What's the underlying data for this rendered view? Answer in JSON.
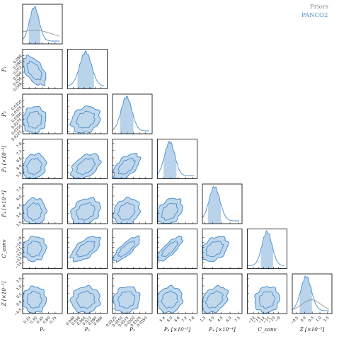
{
  "chart_data": {
    "type": "corner",
    "legend": {
      "placement": "top-right",
      "entries": [
        {
          "name": "Priors",
          "color": "#8c8c8c"
        },
        {
          "name": "PANCO2",
          "color": "#4a8fcb"
        }
      ]
    },
    "colors": {
      "posterior_line": "#4a8fcb",
      "posterior_fill": "#b9d3ea",
      "prior_line": "#8c8c8c"
    },
    "parameters": [
      {
        "label": "P₀",
        "range": [
          0.0,
          0.85
        ],
        "ticks": [
          "0.15",
          "0.30",
          "0.45",
          "0.60",
          "0.75"
        ],
        "tick_values": [
          0.15,
          0.3,
          0.45,
          0.6,
          0.75
        ],
        "mean": 0.27,
        "sd": 0.11,
        "shaded": [
          0.13,
          0.42
        ]
      },
      {
        "label": "P₁",
        "range": [
          0.04,
          0.093
        ],
        "ticks": [
          "0.048",
          "0.056",
          "0.064",
          "0.072",
          "0.080",
          "0.088"
        ],
        "tick_values": [
          0.048,
          0.056,
          0.064,
          0.072,
          0.08,
          0.088
        ],
        "mean": 0.066,
        "sd": 0.0085,
        "shaded": [
          0.054,
          0.078
        ]
      },
      {
        "label": "P₂",
        "range": [
          0.0215,
          0.0365
        ],
        "ticks": [
          "0.0225",
          "0.0250",
          "0.0275",
          "0.0300",
          "0.0325",
          "0.0350"
        ],
        "tick_values": [
          0.0225,
          0.025,
          0.0275,
          0.03,
          0.0325,
          0.035
        ],
        "mean": 0.0272,
        "sd": 0.0022,
        "shaded": [
          0.0244,
          0.03
        ]
      },
      {
        "label": "P₃ [×10⁻³]",
        "range": [
          4.9,
          7.9
        ],
        "ticks": [
          "5.4",
          "6.0",
          "6.6",
          "7.2",
          "7.8"
        ],
        "tick_values": [
          5.4,
          6.0,
          6.6,
          7.2,
          7.8
        ],
        "mean": 5.9,
        "sd": 0.42,
        "shaded": [
          5.4,
          6.45
        ]
      },
      {
        "label": "P₄ [×10⁻⁴]",
        "range": [
          1.2,
          7.6
        ],
        "ticks": [
          "1.5",
          "3.0",
          "4.5",
          "6.0",
          "7.5"
        ],
        "tick_values": [
          1.5,
          3.0,
          4.5,
          6.0,
          7.5
        ],
        "mean": 3.3,
        "sd": 0.95,
        "shaded": [
          2.1,
          4.5
        ]
      },
      {
        "label": "C_conv",
        "range": [
          -15.2,
          -7.9
        ],
        "ticks": [
          "−14",
          "−13",
          "−12",
          "−11",
          "−10",
          "−9"
        ],
        "tick_values": [
          -14,
          -13,
          -12,
          -11,
          -10,
          -9
        ],
        "mean": -11.3,
        "sd": 1.0,
        "shaded": [
          -12.6,
          -10.0
        ]
      },
      {
        "label": "Z [×10⁻⁵]",
        "range": [
          -0.8,
          1.6
        ],
        "ticks": [
          "−0.5",
          "0.0",
          "0.5",
          "1.0",
          "1.5"
        ],
        "tick_values": [
          -0.5,
          0.0,
          0.5,
          1.0,
          1.5
        ],
        "mean": 0.1,
        "sd": 0.35,
        "shaded": [
          -0.33,
          0.52
        ]
      }
    ],
    "priors": [
      {
        "index": 0,
        "mean": 0.27,
        "sd": 0.45
      },
      {
        "index": 6,
        "mean": 0.45,
        "sd": 0.6
      }
    ],
    "correlations": [
      [
        1,
        -0.55,
        0.05,
        0.15,
        0.05,
        0.1,
        0.0
      ],
      [
        -0.55,
        1,
        0.2,
        0.45,
        0.25,
        0.6,
        0.05
      ],
      [
        0.05,
        0.2,
        1,
        0.55,
        0.2,
        0.8,
        0.1
      ],
      [
        0.15,
        0.45,
        0.55,
        1,
        0.35,
        0.8,
        0.1
      ],
      [
        0.05,
        0.25,
        0.2,
        0.35,
        1,
        0.35,
        0.35
      ],
      [
        0.1,
        0.6,
        0.8,
        0.8,
        0.35,
        1,
        0.1
      ],
      [
        0.0,
        0.05,
        0.1,
        0.1,
        0.35,
        0.1,
        1
      ]
    ],
    "contour_levels_sigma": [
      1,
      2
    ]
  }
}
